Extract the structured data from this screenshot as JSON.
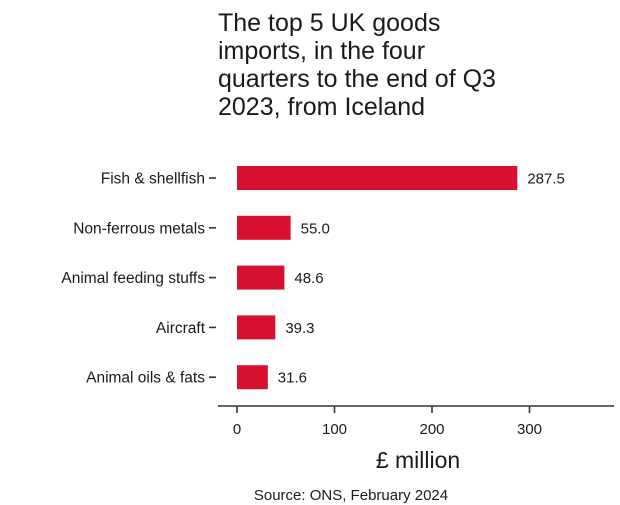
{
  "chart_data": {
    "type": "bar",
    "orientation": "horizontal",
    "title_lines": [
      "The top 5 UK goods",
      "imports, in the four",
      "quarters to the end of Q3",
      "2023, from Iceland"
    ],
    "categories": [
      "Fish & shellfish",
      "Non-ferrous metals",
      "Animal feeding stuffs",
      "Aircraft",
      "Animal oils & fats"
    ],
    "values": [
      287.5,
      55.0,
      48.6,
      39.3,
      31.6
    ],
    "value_labels": [
      "287.5",
      "55.0",
      "48.6",
      "39.3",
      "31.6"
    ],
    "xlabel": "£ million",
    "xlim": [
      -19,
      380
    ],
    "xticks": [
      0,
      100,
      200,
      300
    ],
    "xtick_labels": [
      "0",
      "100",
      "200",
      "300"
    ],
    "grid": false,
    "bar_color": "#d7102f",
    "source": "Source: ONS, February 2024"
  }
}
